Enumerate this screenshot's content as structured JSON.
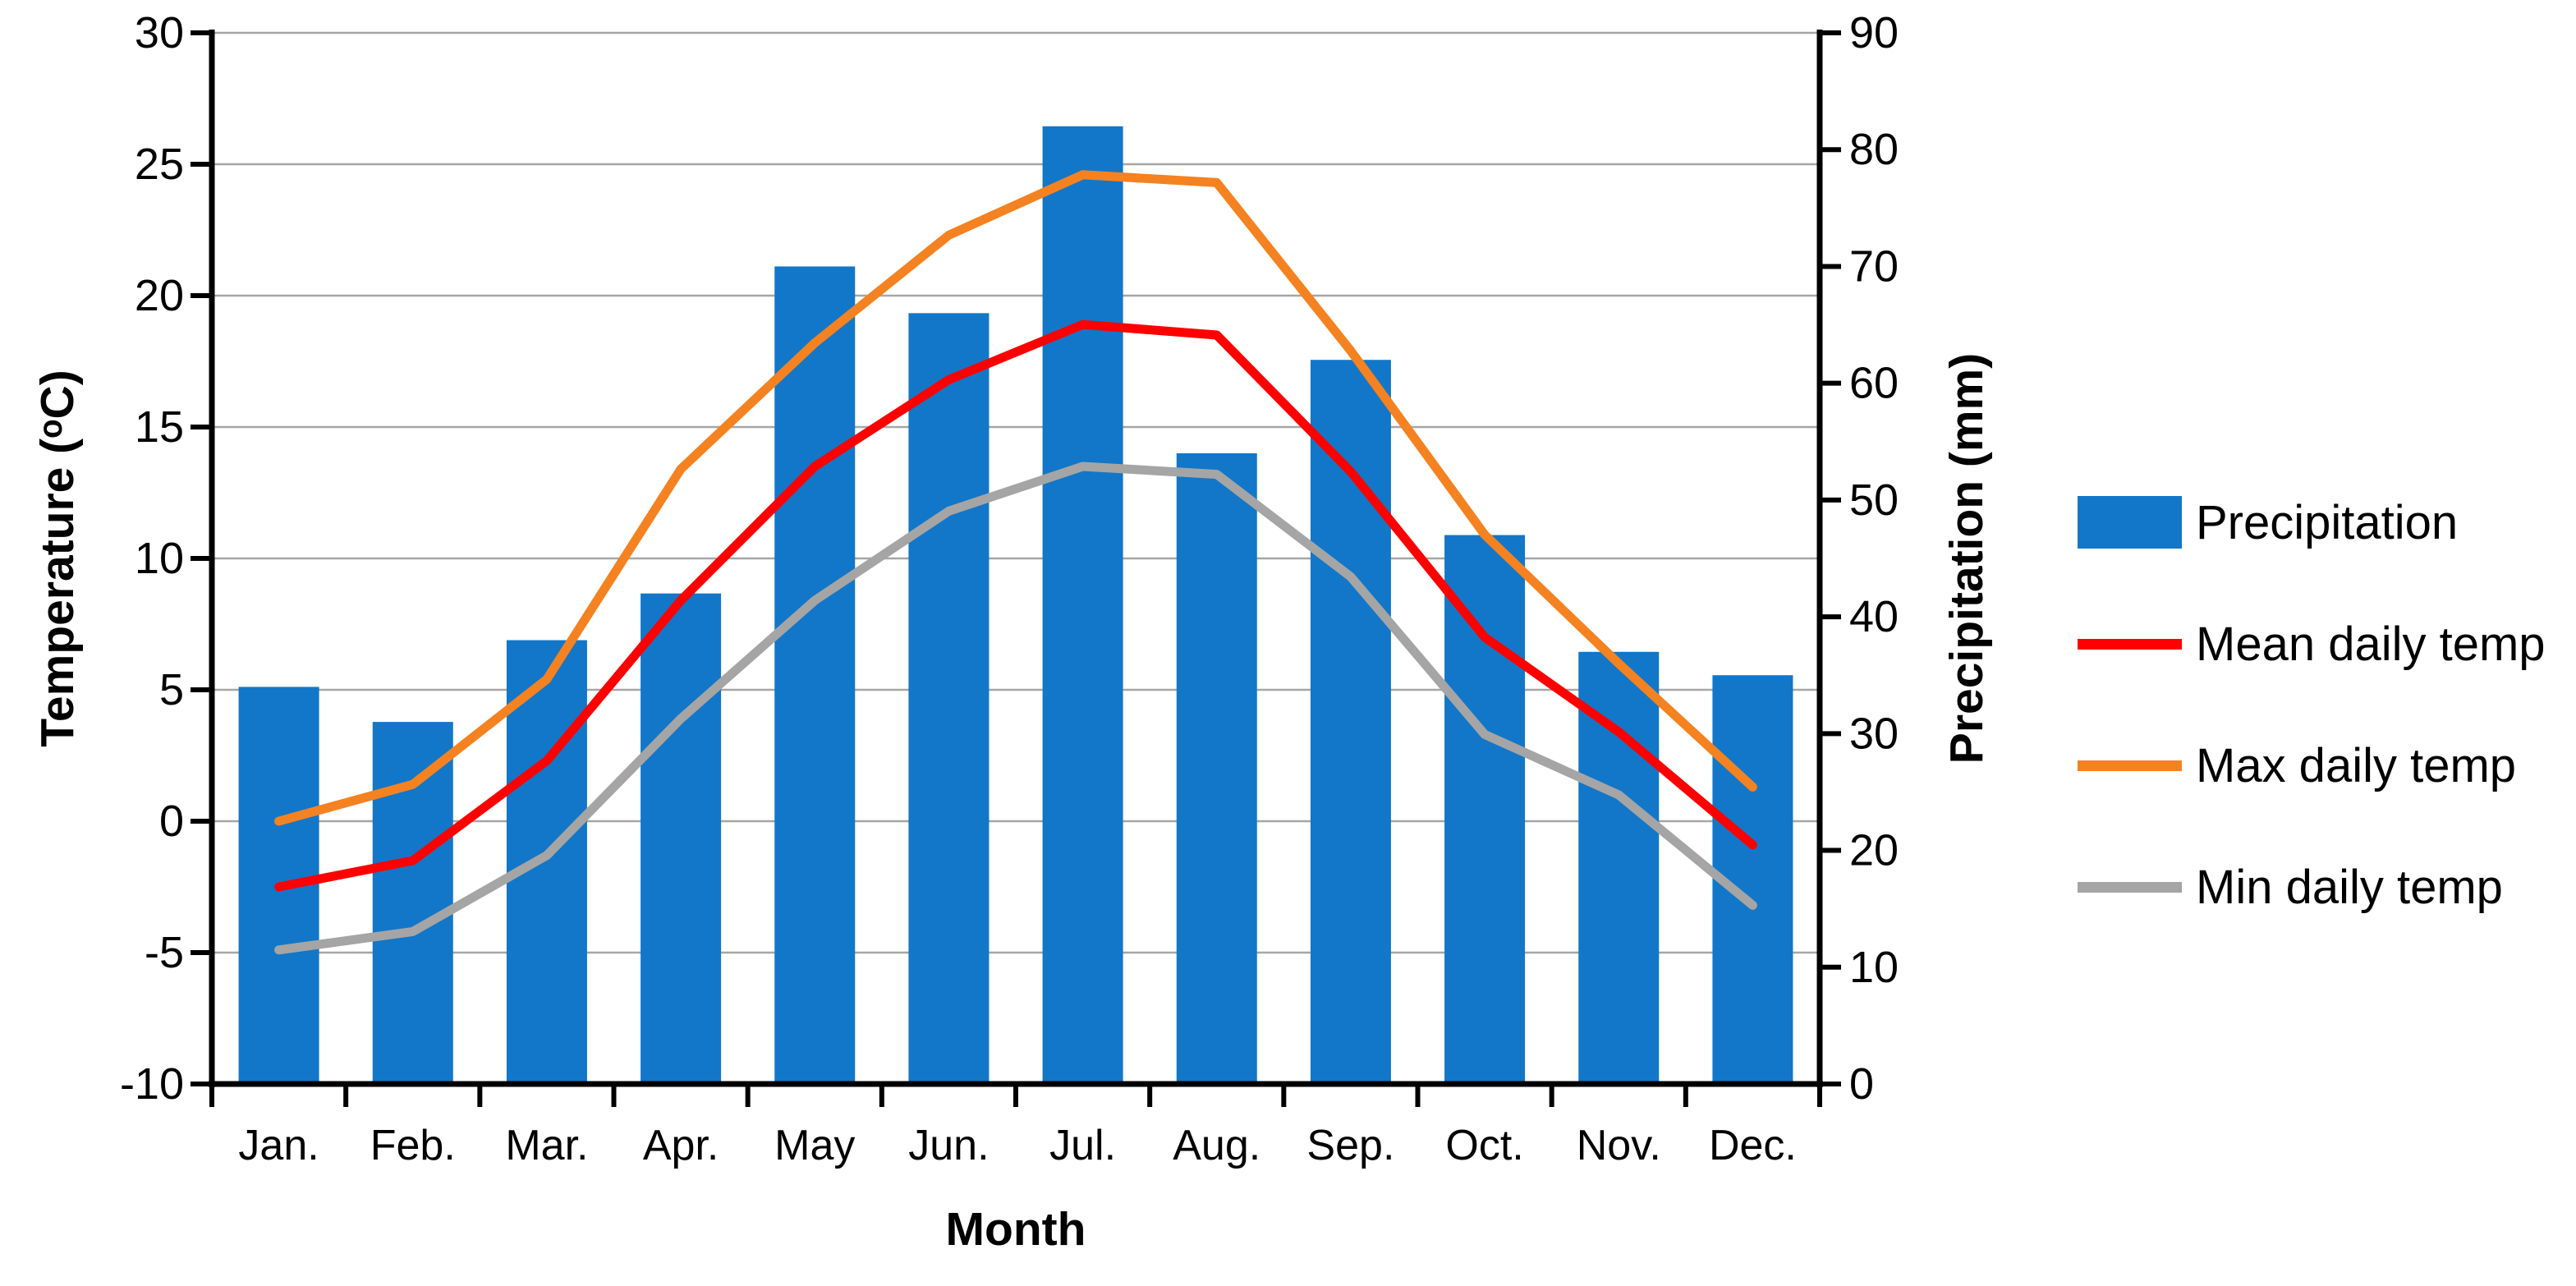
{
  "chart_data": {
    "type": "combo-bar-line",
    "categories": [
      "Jan.",
      "Feb.",
      "Mar.",
      "Apr.",
      "May",
      "Jun.",
      "Jul.",
      "Aug.",
      "Sep.",
      "Oct.",
      "Nov.",
      "Dec."
    ],
    "x_axis": {
      "title": "Month"
    },
    "left_axis": {
      "title": "Temperature (ᵒC)",
      "min": -10,
      "max": 30,
      "step": 5,
      "ticks": [
        "30",
        "25",
        "20",
        "15",
        "10",
        "5",
        "0",
        "-5",
        "-10"
      ]
    },
    "right_axis": {
      "title": "Precipitation (mm)",
      "min": 0,
      "max": 90,
      "step": 10,
      "ticks": [
        "90",
        "80",
        "70",
        "60",
        "50",
        "40",
        "30",
        "20",
        "10",
        "0"
      ]
    },
    "bar_series": {
      "name": "Precipitation",
      "unit": "mm",
      "axis": "right",
      "color": "#1277C8",
      "values": [
        34,
        31,
        38,
        42,
        70,
        66,
        82,
        54,
        62,
        47,
        37,
        35
      ]
    },
    "line_series": [
      {
        "name": "Mean daily temp",
        "axis": "left",
        "color": "#FF0000",
        "values": [
          -2.5,
          -1.5,
          2.3,
          8.4,
          13.5,
          16.8,
          18.9,
          18.5,
          13.3,
          7.0,
          3.4,
          -0.9
        ]
      },
      {
        "name": "Max daily temp",
        "axis": "left",
        "color": "#F58220",
        "values": [
          0.0,
          1.4,
          5.4,
          13.4,
          18.2,
          22.3,
          24.6,
          24.3,
          17.9,
          10.9,
          6.0,
          1.3
        ]
      },
      {
        "name": "Min daily temp",
        "axis": "left",
        "color": "#A5A5A5",
        "values": [
          -4.9,
          -4.2,
          -1.3,
          3.9,
          8.4,
          11.8,
          13.5,
          13.2,
          9.3,
          3.3,
          1.0,
          -3.2
        ]
      }
    ],
    "legend": {
      "position": "right",
      "items": [
        {
          "label": "Precipitation",
          "swatch": "rect",
          "color": "#1277C8"
        },
        {
          "label": "Mean daily temp",
          "swatch": "line",
          "color": "#FF0000"
        },
        {
          "label": "Max daily temp",
          "swatch": "line",
          "color": "#F58220"
        },
        {
          "label": "Min daily temp",
          "swatch": "line",
          "color": "#A5A5A5"
        }
      ]
    },
    "grid": {
      "horizontal": true,
      "color": "#A6A6A6"
    },
    "axis_color": "#000000",
    "background": "#FFFFFF"
  }
}
